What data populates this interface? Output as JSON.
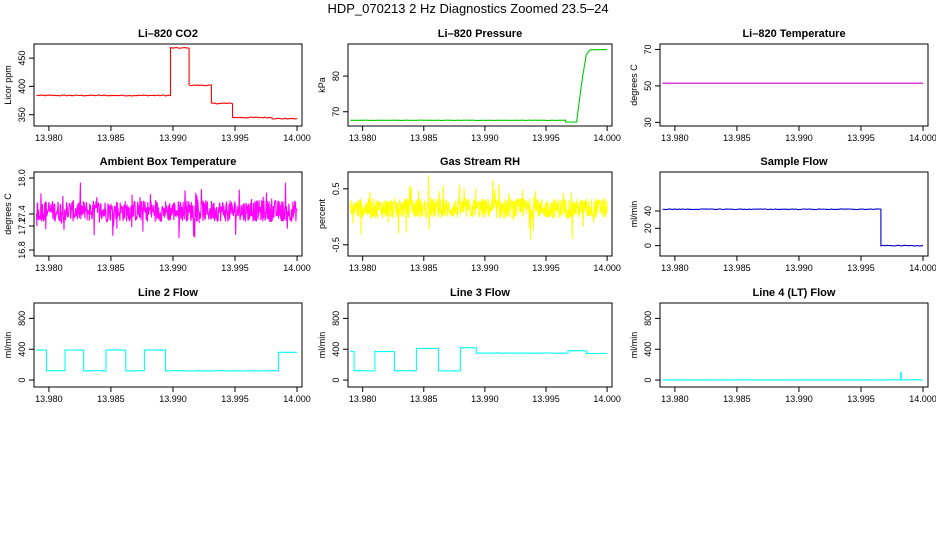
{
  "page": {
    "title": "HDP_070213  2 Hz Diagnostics Zoomed 23.5–24"
  },
  "chart_data": [
    {
      "type": "line",
      "title": "Li–820 CO2",
      "ylabel": "Licor ppm",
      "xlabel": "",
      "xlim": [
        13.9788,
        14.0004
      ],
      "ylim": [
        330,
        475
      ],
      "xticks": [
        13.98,
        13.985,
        13.99,
        13.995,
        14.0
      ],
      "xtick_labels": [
        "13.980",
        "13.985",
        "13.990",
        "13.995",
        "14.000"
      ],
      "yticks": [
        350,
        400,
        450
      ],
      "ytick_labels": [
        "350",
        "400",
        "450"
      ],
      "grid": false,
      "series": [
        {
          "color": "#ff0000",
          "noise": 0.9,
          "x": [
            13.979,
            13.9898,
            13.9898,
            13.9913,
            13.9913,
            13.9931,
            13.9931,
            13.9948,
            13.9948,
            13.998,
            13.998,
            14.0
          ],
          "y": [
            384,
            384,
            468,
            468,
            402,
            402,
            370,
            370,
            345,
            345,
            343,
            343
          ]
        }
      ]
    },
    {
      "type": "line",
      "title": "Li–820 Pressure",
      "ylabel": "kPa",
      "xlabel": "",
      "xlim": [
        13.9788,
        14.0004
      ],
      "ylim": [
        66,
        89
      ],
      "xticks": [
        13.98,
        13.985,
        13.99,
        13.995,
        14.0
      ],
      "xtick_labels": [
        "13.980",
        "13.985",
        "13.990",
        "13.995",
        "14.000"
      ],
      "yticks": [
        70,
        80
      ],
      "ytick_labels": [
        "70",
        "80"
      ],
      "grid": false,
      "series": [
        {
          "color": "#00cd00",
          "noise": 0.04,
          "x": [
            13.979,
            13.9966,
            13.9966,
            13.9975,
            13.998,
            13.9983,
            13.9986,
            14.0
          ],
          "y": [
            67.6,
            67.6,
            67.1,
            67.1,
            80,
            86,
            87.4,
            87.4
          ]
        }
      ]
    },
    {
      "type": "line",
      "title": "Li–820 Temperature",
      "ylabel": "degrees C",
      "xlabel": "",
      "xlim": [
        13.9788,
        14.0004
      ],
      "ylim": [
        28,
        73
      ],
      "xticks": [
        13.98,
        13.985,
        13.99,
        13.995,
        14.0
      ],
      "xtick_labels": [
        "13.980",
        "13.985",
        "13.990",
        "13.995",
        "14.000"
      ],
      "yticks": [
        30,
        50,
        70
      ],
      "ytick_labels": [
        "30",
        "50",
        "70"
      ],
      "grid": false,
      "series": [
        {
          "color": "#cd00cd",
          "noise": 0,
          "x": [
            13.979,
            14.0
          ],
          "y": [
            51.5,
            51.5
          ]
        }
      ]
    },
    {
      "type": "line",
      "title": "Ambient Box Temperature",
      "ylabel": "degrees C",
      "xlabel": "",
      "xlim": [
        13.9788,
        14.0004
      ],
      "ylim": [
        16.7,
        18.1
      ],
      "xticks": [
        13.98,
        13.985,
        13.99,
        13.995,
        14.0
      ],
      "xtick_labels": [
        "13.980",
        "13.985",
        "13.990",
        "13.995",
        "14.000"
      ],
      "yticks": [
        16.8,
        17.2,
        17.4,
        18.0
      ],
      "ytick_labels": [
        "16.8",
        "17.2",
        "17.4",
        "18.0"
      ],
      "grid": false,
      "series": [
        {
          "color": "#ff00ff",
          "noise": 0.18,
          "spikes": 0.35,
          "points": 700,
          "x": [
            13.979,
            14.0
          ],
          "y": [
            17.45,
            17.45
          ]
        }
      ]
    },
    {
      "type": "line",
      "title": "Gas Stream RH",
      "ylabel": "percent",
      "xlabel": "",
      "xlim": [
        13.9788,
        14.0004
      ],
      "ylim": [
        -0.7,
        0.8
      ],
      "xticks": [
        13.98,
        13.985,
        13.99,
        13.995,
        14.0
      ],
      "xtick_labels": [
        "13.980",
        "13.985",
        "13.990",
        "13.995",
        "14.000"
      ],
      "yticks": [
        -0.5,
        0.5
      ],
      "ytick_labels": [
        "-0.5",
        "0.5"
      ],
      "grid": false,
      "series": [
        {
          "color": "#ffff00",
          "noise": 0.18,
          "spikes": 0.5,
          "points": 700,
          "x": [
            13.979,
            14.0
          ],
          "y": [
            0.15,
            0.15
          ]
        }
      ]
    },
    {
      "type": "line",
      "title": "Sample Flow",
      "ylabel": "ml/min",
      "xlabel": "",
      "xlim": [
        13.9788,
        14.0004
      ],
      "ylim": [
        -12,
        85
      ],
      "xticks": [
        13.98,
        13.985,
        13.99,
        13.995,
        14.0
      ],
      "xtick_labels": [
        "13.980",
        "13.985",
        "13.990",
        "13.995",
        "14.000"
      ],
      "yticks": [
        0,
        20,
        40
      ],
      "ytick_labels": [
        "0",
        "20",
        "40"
      ],
      "grid": false,
      "series": [
        {
          "color": "#0000cd",
          "noise": 0.4,
          "x": [
            13.979,
            13.9966,
            13.9966,
            14.0
          ],
          "y": [
            42,
            42,
            0,
            0
          ]
        }
      ]
    },
    {
      "type": "line",
      "title": "Line 2 Flow",
      "ylabel": "ml/min",
      "xlabel": "",
      "xlim": [
        13.9788,
        14.0004
      ],
      "ylim": [
        -90,
        1000
      ],
      "xticks": [
        13.98,
        13.985,
        13.99,
        13.995,
        14.0
      ],
      "xtick_labels": [
        "13.980",
        "13.985",
        "13.990",
        "13.995",
        "14.000"
      ],
      "yticks": [
        0,
        400,
        800
      ],
      "ytick_labels": [
        "0",
        "400",
        "800"
      ],
      "grid": false,
      "series": [
        {
          "color": "#00ffff",
          "noise": 3,
          "x": [
            13.979,
            13.9798,
            13.9798,
            13.9813,
            13.9813,
            13.9828,
            13.9828,
            13.9846,
            13.9846,
            13.9862,
            13.9862,
            13.9877,
            13.9877,
            13.9894,
            13.9894,
            13.997,
            13.997,
            13.9985,
            13.9985,
            14.0
          ],
          "y": [
            390,
            390,
            120,
            120,
            390,
            390,
            120,
            120,
            390,
            390,
            120,
            120,
            390,
            390,
            120,
            120,
            120,
            120,
            360,
            360
          ]
        }
      ]
    },
    {
      "type": "line",
      "title": "Line 3 Flow",
      "ylabel": "ml/min",
      "xlabel": "",
      "xlim": [
        13.9788,
        14.0004
      ],
      "ylim": [
        -90,
        1000
      ],
      "xticks": [
        13.98,
        13.985,
        13.99,
        13.995,
        14.0
      ],
      "xtick_labels": [
        "13.980",
        "13.985",
        "13.990",
        "13.995",
        "14.000"
      ],
      "yticks": [
        0,
        400,
        800
      ],
      "ytick_labels": [
        "0",
        "400",
        "800"
      ],
      "grid": false,
      "series": [
        {
          "color": "#00ffff",
          "noise": 3,
          "x": [
            13.979,
            13.9793,
            13.9793,
            13.981,
            13.981,
            13.9826,
            13.9826,
            13.9844,
            13.9844,
            13.9862,
            13.9862,
            13.988,
            13.988,
            13.9893,
            13.9893,
            13.9968,
            13.9968,
            13.9983,
            13.9983,
            14.0
          ],
          "y": [
            370,
            370,
            120,
            120,
            370,
            370,
            120,
            120,
            410,
            410,
            120,
            120,
            420,
            420,
            350,
            350,
            380,
            380,
            345,
            345
          ]
        }
      ]
    },
    {
      "type": "line",
      "title": "Line 4 (LT) Flow",
      "ylabel": "ml/min",
      "xlabel": "",
      "xlim": [
        13.9788,
        14.0004
      ],
      "ylim": [
        -90,
        1000
      ],
      "xticks": [
        13.98,
        13.985,
        13.99,
        13.995,
        14.0
      ],
      "xtick_labels": [
        "13.980",
        "13.985",
        "13.990",
        "13.995",
        "14.000"
      ],
      "yticks": [
        0,
        400,
        800
      ],
      "ytick_labels": [
        "0",
        "400",
        "800"
      ],
      "grid": false,
      "series": [
        {
          "color": "#00ffff",
          "noise": 1,
          "x": [
            13.979,
            13.9982,
            13.9982,
            13.99825,
            13.99825,
            14.0
          ],
          "y": [
            3,
            3,
            95,
            95,
            3,
            3
          ]
        }
      ]
    }
  ]
}
